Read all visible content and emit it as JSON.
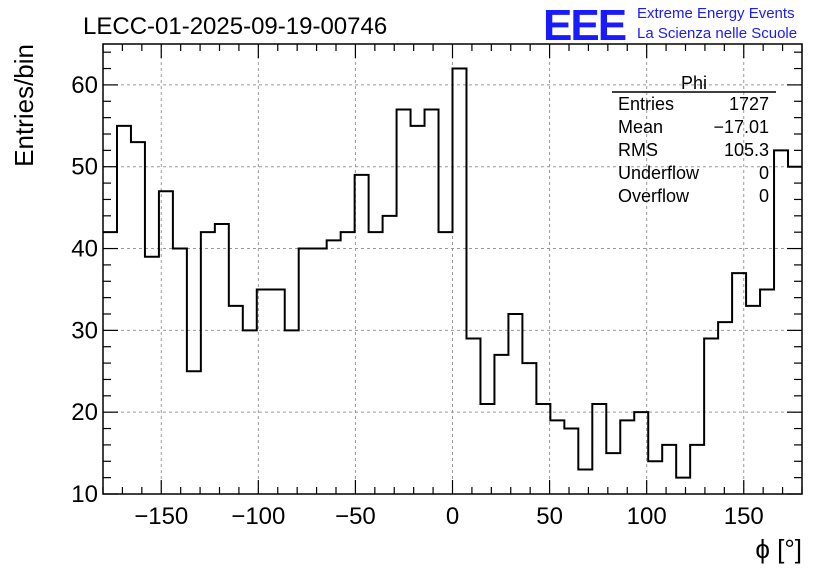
{
  "chart_data": {
    "type": "histogram",
    "title": "LECC-01-2025-09-19-00746",
    "xlabel": "ϕ [°]",
    "ylabel": "Entries/bin",
    "xlim": [
      -180,
      180
    ],
    "ylim": [
      10,
      65
    ],
    "grid": true,
    "bin_width": 7.2,
    "bin_start": -180,
    "counts": [
      42,
      55,
      53,
      39,
      47,
      40,
      25,
      42,
      43,
      33,
      30,
      35,
      35,
      30,
      40,
      40,
      41,
      42,
      49,
      42,
      44,
      57,
      55,
      57,
      42,
      62,
      29,
      21,
      27,
      32,
      26,
      21,
      19,
      18,
      13,
      21,
      15,
      19,
      20,
      14,
      16,
      12,
      16,
      29,
      31,
      37,
      33,
      35,
      52,
      50
    ],
    "x_ticks": [
      -150,
      -100,
      -50,
      0,
      50,
      100,
      150
    ],
    "x_tick_labels": [
      "−150",
      "−100",
      "−50",
      "0",
      "50",
      "100",
      "150"
    ],
    "y_ticks": [
      10,
      20,
      30,
      40,
      50,
      60
    ],
    "y_tick_labels": [
      "10",
      "20",
      "30",
      "40",
      "50",
      "60"
    ],
    "stats_box": {
      "name": "Phi",
      "rows": [
        {
          "label": "Entries",
          "value": "1727"
        },
        {
          "label": "Mean",
          "value": "−17.01"
        },
        {
          "label": "RMS",
          "value": "105.3"
        },
        {
          "label": "Underflow",
          "value": "0"
        },
        {
          "label": "Overflow",
          "value": "0"
        }
      ]
    }
  },
  "logo": {
    "mark": "EEE",
    "line1": "Extreme Energy Events",
    "line2": "La Scienza nelle Scuole",
    "color": "#1a1aff"
  },
  "colors": {
    "line": "#000000",
    "grid": "#9a9a9a"
  }
}
